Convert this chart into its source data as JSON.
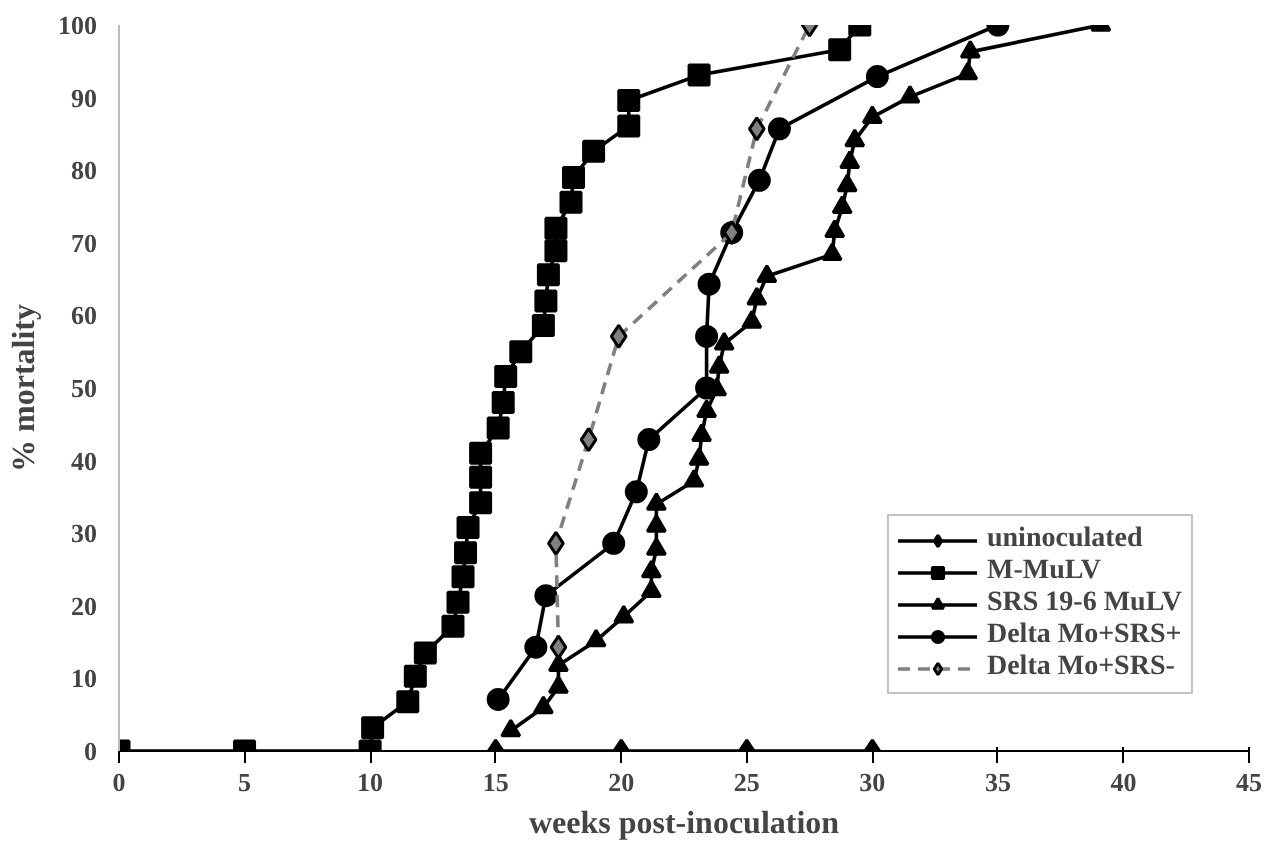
{
  "chart_data": {
    "type": "line",
    "xlabel": "weeks post-inoculation",
    "ylabel": "% mortality",
    "xlim": [
      0,
      45
    ],
    "ylim": [
      0,
      100
    ],
    "xticks": [
      0,
      5,
      10,
      15,
      20,
      25,
      30,
      35,
      40,
      45
    ],
    "yticks": [
      0,
      10,
      20,
      30,
      40,
      50,
      60,
      70,
      80,
      90,
      100
    ],
    "grid": false,
    "legend": "bottom right",
    "series": [
      {
        "name": "uninoculated",
        "color": "#000000",
        "marker": "diamond",
        "line_style": "solid",
        "x": [
          15,
          20,
          25,
          30
        ],
        "values": [
          0,
          0,
          0,
          0
        ]
      },
      {
        "name": "M-MuLV",
        "color": "#000000",
        "marker": "square",
        "line_style": "solid",
        "x": [
          0,
          5,
          10,
          10.1,
          11.5,
          11.8,
          12.2,
          13.3,
          13.5,
          13.7,
          13.8,
          13.9,
          14.4,
          14.4,
          14.4,
          15.1,
          15.3,
          15.4,
          16.0,
          16.9,
          17.0,
          17.1,
          17.4,
          17.4,
          18.0,
          18.1,
          18.9,
          20.3,
          20.3,
          23.1,
          28.7,
          29.5
        ],
        "values": [
          0,
          0,
          0,
          3.2,
          6.8,
          10.3,
          13.5,
          17.2,
          20.5,
          24,
          27.3,
          30.8,
          34.2,
          37.7,
          41,
          44.5,
          48,
          51.6,
          55,
          58.6,
          62,
          65.6,
          68.9,
          72,
          75.6,
          79,
          82.6,
          86.1,
          89.6,
          93.1,
          96.6,
          100
        ]
      },
      {
        "name": "SRS 19-6 MuLV",
        "color": "#000000",
        "marker": "triangle",
        "line_style": "solid",
        "x": [
          15.6,
          16.9,
          17.5,
          17.5,
          19.0,
          20.1,
          21.2,
          21.2,
          21.4,
          21.4,
          21.4,
          22.9,
          23.1,
          23.2,
          23.4,
          23.8,
          23.9,
          24.1,
          25.2,
          25.4,
          25.8,
          28.4,
          28.5,
          28.8,
          29.0,
          29.1,
          29.3,
          30.0,
          31.5,
          33.8,
          33.9,
          39.1
        ],
        "values": [
          2.8,
          6.0,
          8.8,
          11.8,
          15.2,
          18.5,
          22.0,
          24.7,
          27.8,
          31.0,
          34.0,
          37.2,
          40.2,
          43.5,
          46.8,
          49.8,
          52.9,
          56.1,
          59.1,
          62.3,
          65.4,
          68.4,
          71.6,
          74.9,
          77.9,
          81.1,
          84.1,
          87.3,
          90.1,
          93.3,
          96.3,
          100
        ]
      },
      {
        "name": "Delta Mo+SRS+",
        "color": "#000000",
        "marker": "circle",
        "line_style": "solid",
        "x": [
          15.1,
          16.6,
          17.0,
          19.7,
          20.6,
          21.1,
          23.4,
          23.4,
          23.5,
          24.4,
          25.5,
          26.3,
          30.2,
          35.0
        ],
        "values": [
          7.1,
          14.3,
          21.4,
          28.6,
          35.7,
          42.9,
          50,
          57.1,
          64.3,
          71.4,
          78.6,
          85.7,
          92.9,
          100
        ]
      },
      {
        "name": "Delta Mo+SRS-",
        "color": "#808080",
        "marker": "diamond",
        "line_style": "dashed",
        "x": [
          17.5,
          17.4,
          18.7,
          19.9,
          24.4,
          25.4,
          27.5
        ],
        "values": [
          14.3,
          28.6,
          42.9,
          57.1,
          71.4,
          85.7,
          100
        ]
      }
    ]
  }
}
